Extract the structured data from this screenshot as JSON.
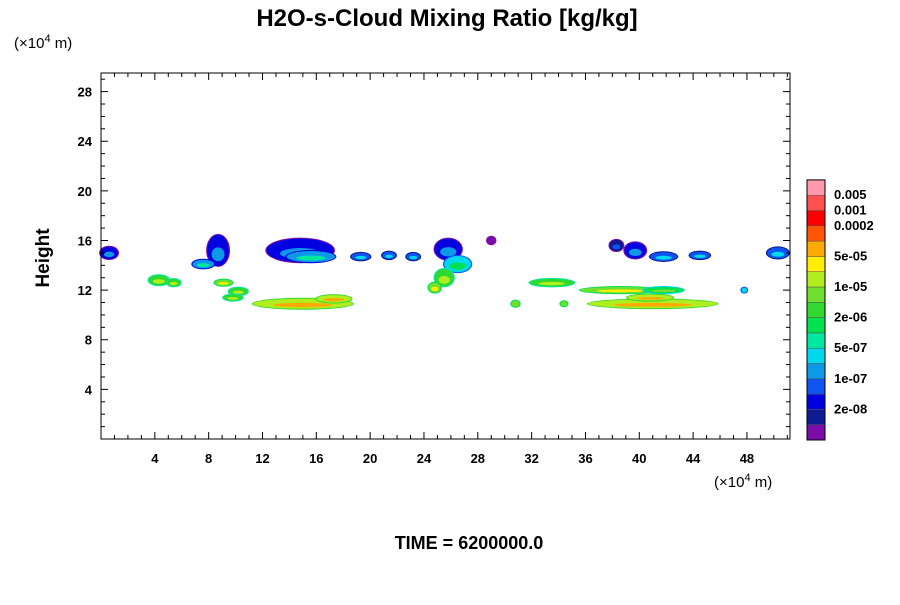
{
  "chart_data": {
    "type": "heatmap",
    "title": "H2O-s-Cloud Mixing Ratio [kg/kg]",
    "ylabel": "Height",
    "xlabel": "",
    "x_unit_prefix": "(×10",
    "x_unit_exp": "4",
    "x_unit_suffix": " m)",
    "y_unit_prefix": "(×10",
    "y_unit_exp": "4",
    "y_unit_suffix": " m)",
    "xlim": [
      0,
      51.2
    ],
    "ylim": [
      0,
      29.5
    ],
    "x_ticks": [
      4,
      8,
      12,
      16,
      20,
      24,
      28,
      32,
      36,
      40,
      44,
      48
    ],
    "x_tick_labels": [
      "4",
      "8",
      "12",
      "16",
      "20",
      "24",
      "28",
      "32",
      "36",
      "40",
      "44",
      "48"
    ],
    "y_ticks": [
      4,
      8,
      12,
      16,
      20,
      24,
      28
    ],
    "y_tick_labels": [
      "4",
      "8",
      "12",
      "16",
      "20",
      "24",
      "28"
    ],
    "footer": "TIME = 6200000.0",
    "colorbar": {
      "colors": [
        "#7a0da8",
        "#0d1a90",
        "#0000e0",
        "#0d55ee",
        "#0d99e8",
        "#00d8ee",
        "#00e8a0",
        "#00e050",
        "#30d830",
        "#70e030",
        "#b0ee20",
        "#ffee00",
        "#ffaa00",
        "#ff5500",
        "#ff0000",
        "#ff5050",
        "#ff9aaa"
      ],
      "labels": [
        {
          "index": 1,
          "text": "2e-08"
        },
        {
          "index": 3,
          "text": "1e-07"
        },
        {
          "index": 5,
          "text": "5e-07"
        },
        {
          "index": 7,
          "text": "2e-06"
        },
        {
          "index": 9,
          "text": "1e-05"
        },
        {
          "index": 11,
          "text": "5e-05"
        },
        {
          "index": 13,
          "text": "0.0002"
        },
        {
          "index": 14,
          "text": "0.001"
        },
        {
          "index": 15,
          "text": "0.005"
        }
      ]
    },
    "cloud_features": [
      {
        "x": 0.6,
        "y": 15.0,
        "w": 1.3,
        "h": 1.0,
        "level": 2
      },
      {
        "x": 8.7,
        "y": 15.2,
        "w": 1.6,
        "h": 2.5,
        "level": 2
      },
      {
        "x": 7.6,
        "y": 14.1,
        "w": 1.6,
        "h": 0.7,
        "level": 4
      },
      {
        "x": 14.8,
        "y": 15.2,
        "w": 5.0,
        "h": 1.9,
        "level": 2
      },
      {
        "x": 15.6,
        "y": 14.7,
        "w": 3.6,
        "h": 0.9,
        "level": 4
      },
      {
        "x": 19.3,
        "y": 14.7,
        "w": 1.4,
        "h": 0.6,
        "level": 3
      },
      {
        "x": 21.4,
        "y": 14.8,
        "w": 1.0,
        "h": 0.6,
        "level": 3
      },
      {
        "x": 23.2,
        "y": 14.7,
        "w": 1.0,
        "h": 0.6,
        "level": 3
      },
      {
        "x": 25.8,
        "y": 15.3,
        "w": 2.0,
        "h": 1.7,
        "level": 2
      },
      {
        "x": 26.5,
        "y": 14.1,
        "w": 2.0,
        "h": 1.3,
        "level": 5
      },
      {
        "x": 25.5,
        "y": 13.0,
        "w": 1.4,
        "h": 1.4,
        "level": 8
      },
      {
        "x": 24.8,
        "y": 12.2,
        "w": 0.9,
        "h": 0.8,
        "level": 9
      },
      {
        "x": 29.0,
        "y": 16.0,
        "w": 0.6,
        "h": 0.6,
        "level": 0
      },
      {
        "x": 38.3,
        "y": 15.6,
        "w": 1.0,
        "h": 0.9,
        "level": 1
      },
      {
        "x": 39.7,
        "y": 15.2,
        "w": 1.6,
        "h": 1.3,
        "level": 2
      },
      {
        "x": 41.8,
        "y": 14.7,
        "w": 2.0,
        "h": 0.7,
        "level": 3
      },
      {
        "x": 44.5,
        "y": 14.8,
        "w": 1.5,
        "h": 0.6,
        "level": 3
      },
      {
        "x": 50.3,
        "y": 15.0,
        "w": 1.6,
        "h": 0.9,
        "level": 3
      },
      {
        "x": 4.3,
        "y": 12.8,
        "w": 1.5,
        "h": 0.8,
        "level": 8
      },
      {
        "x": 5.4,
        "y": 12.6,
        "w": 1.0,
        "h": 0.6,
        "level": 8
      },
      {
        "x": 9.1,
        "y": 12.6,
        "w": 1.3,
        "h": 0.5,
        "level": 9
      },
      {
        "x": 10.2,
        "y": 11.9,
        "w": 1.4,
        "h": 0.6,
        "level": 8
      },
      {
        "x": 9.8,
        "y": 11.4,
        "w": 1.4,
        "h": 0.5,
        "level": 8
      },
      {
        "x": 15.0,
        "y": 10.9,
        "w": 7.4,
        "h": 0.8,
        "level": 10
      },
      {
        "x": 17.3,
        "y": 11.3,
        "w": 2.6,
        "h": 0.6,
        "level": 10
      },
      {
        "x": 33.5,
        "y": 12.6,
        "w": 3.3,
        "h": 0.6,
        "level": 8
      },
      {
        "x": 38.6,
        "y": 12.0,
        "w": 6.0,
        "h": 0.5,
        "level": 9
      },
      {
        "x": 41.8,
        "y": 12.0,
        "w": 3.0,
        "h": 0.5,
        "level": 7
      },
      {
        "x": 41.0,
        "y": 10.9,
        "w": 9.6,
        "h": 0.7,
        "level": 10
      },
      {
        "x": 40.8,
        "y": 11.4,
        "w": 3.4,
        "h": 0.5,
        "level": 10
      },
      {
        "x": 30.8,
        "y": 10.9,
        "w": 0.6,
        "h": 0.5,
        "level": 9
      },
      {
        "x": 34.4,
        "y": 10.9,
        "w": 0.5,
        "h": 0.4,
        "level": 9
      },
      {
        "x": 47.8,
        "y": 12.0,
        "w": 0.4,
        "h": 0.4,
        "level": 5
      }
    ]
  }
}
